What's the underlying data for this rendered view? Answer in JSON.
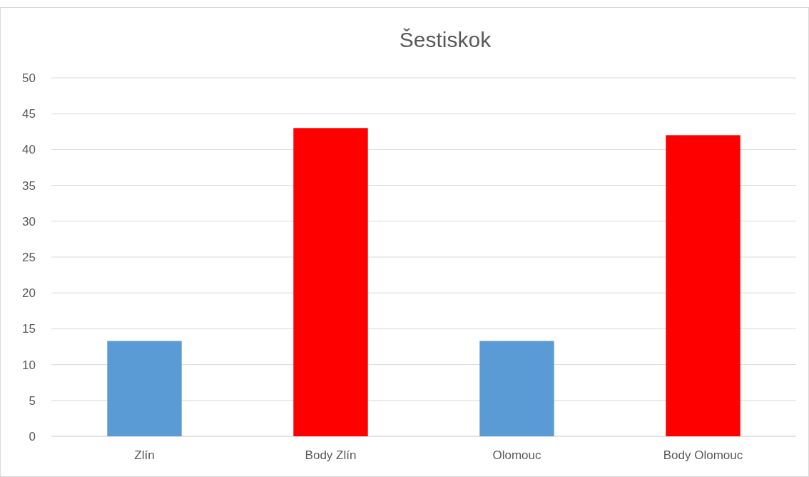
{
  "chart_data": {
    "type": "bar",
    "title": "Šestiskok",
    "categories": [
      "Zlín",
      "Body Zlín",
      "Olomouc",
      "Body Olomouc"
    ],
    "values": [
      13.3,
      43,
      13.3,
      42
    ],
    "colors": [
      "#5b9bd5",
      "#ff0000",
      "#5b9bd5",
      "#ff0000"
    ],
    "ylim": [
      0,
      50
    ],
    "yticks": [
      0,
      5,
      10,
      15,
      20,
      25,
      30,
      35,
      40,
      45,
      50
    ],
    "grid": "y"
  }
}
